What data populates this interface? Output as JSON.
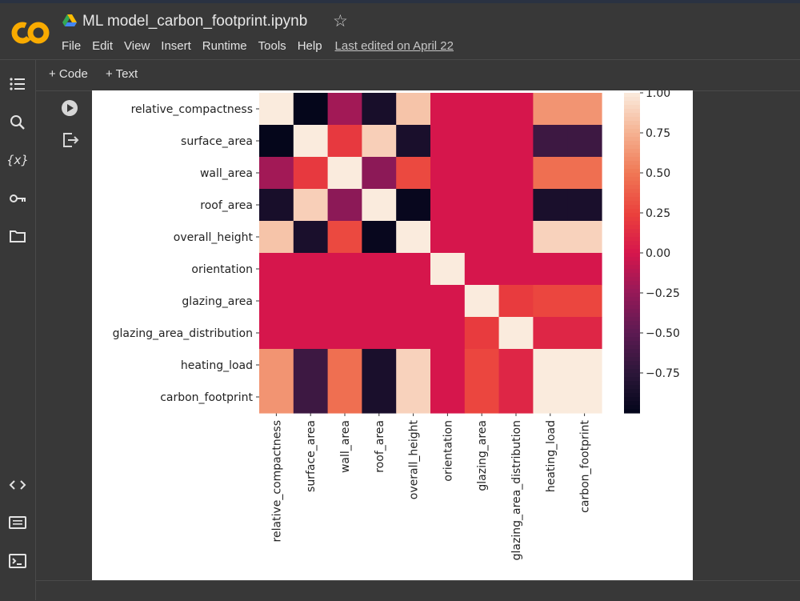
{
  "app": {
    "title": "ML model_carbon_footprint.ipynb",
    "menu": [
      "File",
      "Edit",
      "View",
      "Insert",
      "Runtime",
      "Tools",
      "Help"
    ],
    "last_edited": "Last edited on April 22"
  },
  "toolbar": {
    "code_label": "+ Code",
    "text_label": "+ Text"
  },
  "sidebar": [
    "table-of-contents-icon",
    "search-icon",
    "variables-icon",
    "secrets-key-icon",
    "files-folder-icon",
    "code-snippets-icon",
    "command-palette-icon",
    "terminal-icon"
  ],
  "chart_data": {
    "type": "heatmap",
    "labels": [
      "relative_compactness",
      "surface_area",
      "wall_area",
      "roof_area",
      "overall_height",
      "orientation",
      "glazing_area",
      "glazing_area_distribution",
      "heating_load",
      "carbon_footprint"
    ],
    "values": [
      [
        1.0,
        -0.99,
        -0.2,
        -0.87,
        0.83,
        0.0,
        0.0,
        0.0,
        0.62,
        0.62
      ],
      [
        -0.99,
        1.0,
        0.2,
        0.88,
        -0.86,
        0.0,
        0.0,
        0.0,
        -0.66,
        -0.66
      ],
      [
        -0.2,
        0.2,
        1.0,
        -0.29,
        0.28,
        0.0,
        0.0,
        0.0,
        0.46,
        0.46
      ],
      [
        -0.87,
        0.88,
        -0.29,
        1.0,
        -0.97,
        0.0,
        0.0,
        0.0,
        -0.86,
        -0.86
      ],
      [
        0.83,
        -0.86,
        0.28,
        -0.97,
        1.0,
        0.0,
        0.0,
        0.0,
        0.89,
        0.89
      ],
      [
        0.0,
        0.0,
        0.0,
        0.0,
        0.0,
        1.0,
        0.0,
        0.0,
        0.0,
        0.0
      ],
      [
        0.0,
        0.0,
        0.0,
        0.0,
        0.0,
        0.0,
        1.0,
        0.21,
        0.27,
        0.27
      ],
      [
        0.0,
        0.0,
        0.0,
        0.0,
        0.0,
        0.0,
        0.21,
        1.0,
        0.09,
        0.09
      ],
      [
        0.62,
        -0.66,
        0.46,
        -0.86,
        0.89,
        0.0,
        0.27,
        0.09,
        1.0,
        1.0
      ],
      [
        0.62,
        -0.66,
        0.46,
        -0.86,
        0.89,
        0.0,
        0.27,
        0.09,
        1.0,
        1.0
      ]
    ],
    "colorbar": {
      "min": -1.0,
      "max": 1.0,
      "ticks": [
        1.0,
        0.75,
        0.5,
        0.25,
        0.0,
        -0.25,
        -0.5,
        -0.75
      ],
      "tick_labels": [
        "1.00",
        "0.75",
        "0.50",
        "0.25",
        "0.00",
        "−0.25",
        "−0.50",
        "−0.75"
      ]
    }
  }
}
